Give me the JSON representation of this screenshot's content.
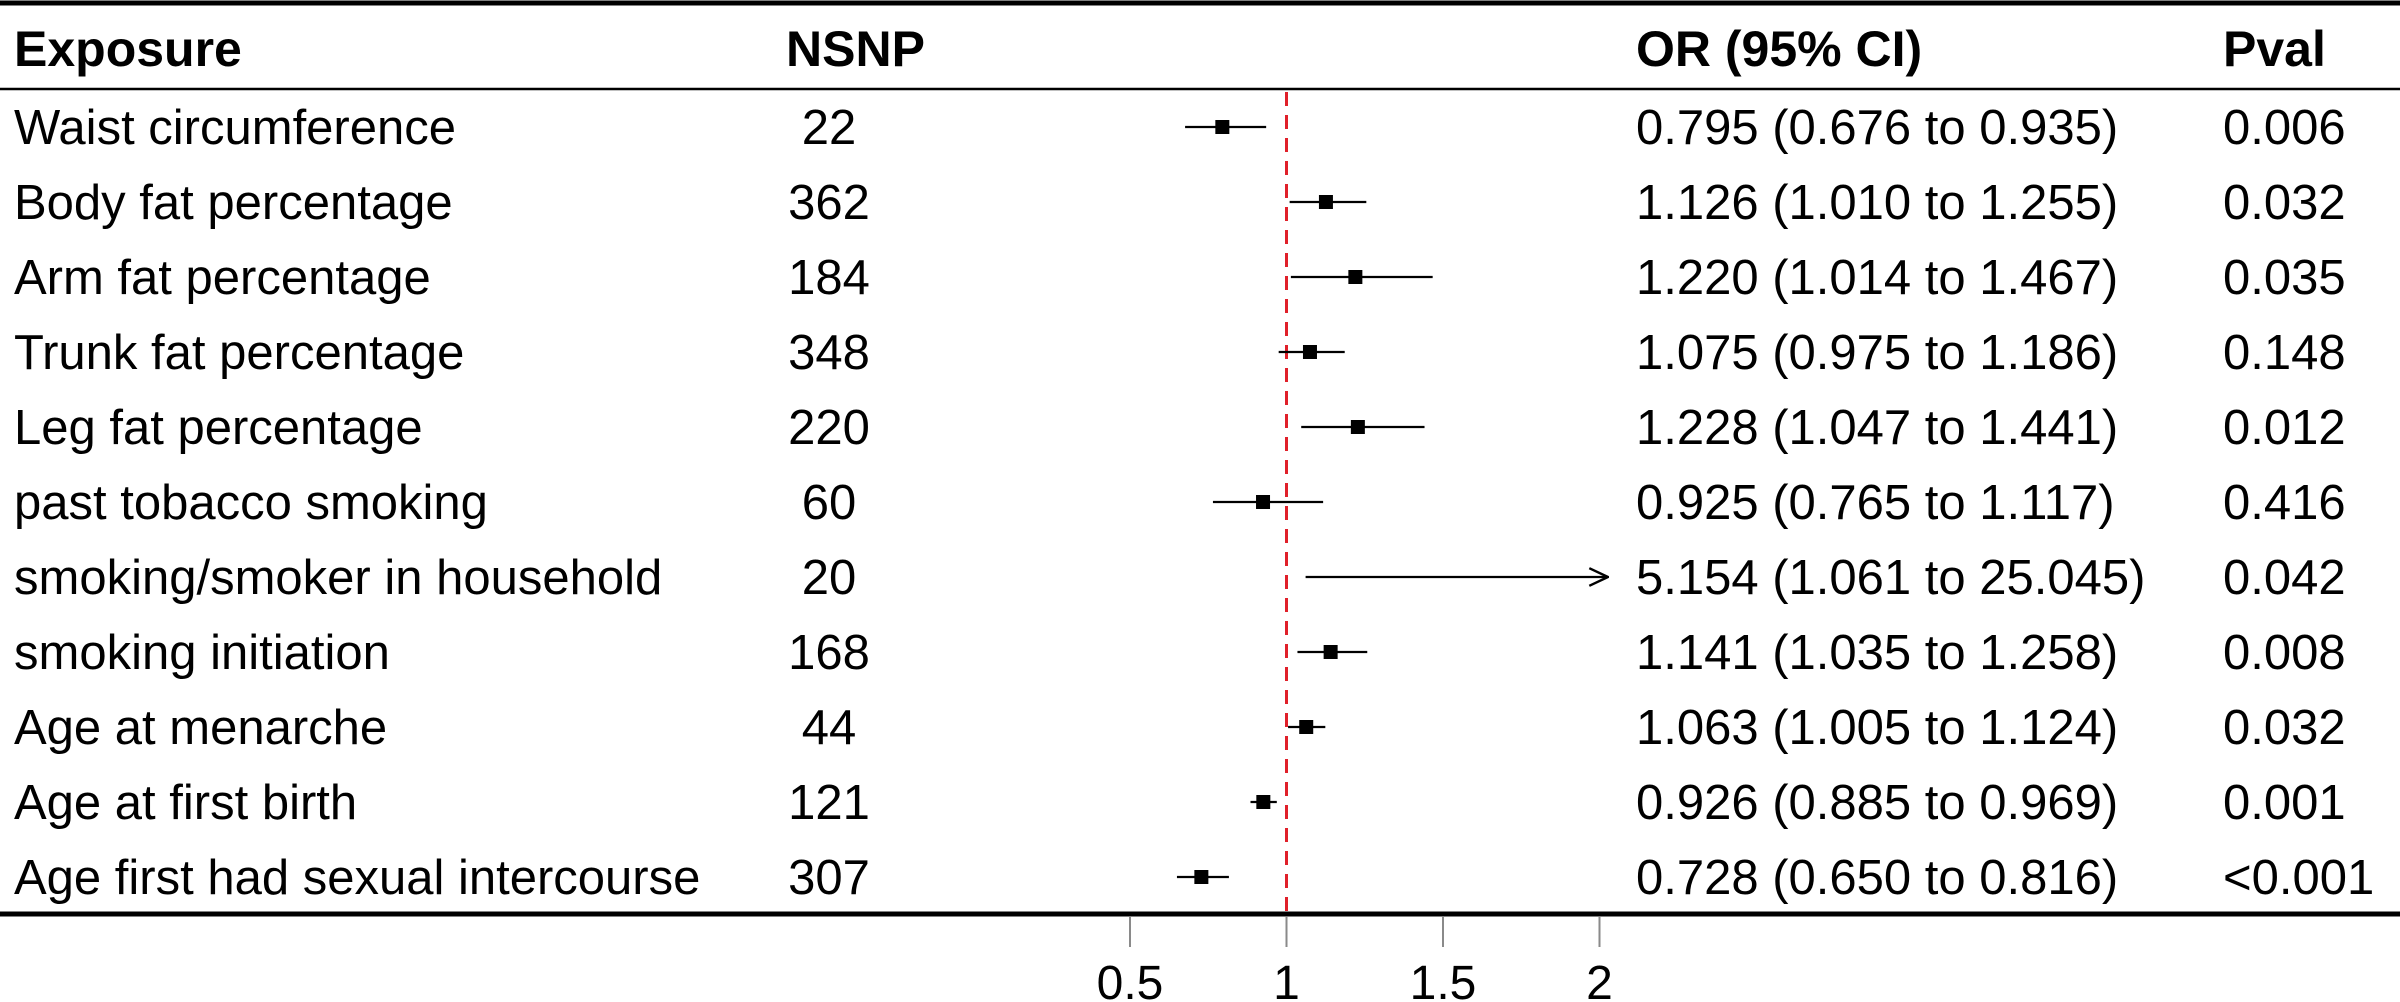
{
  "chart_data": {
    "type": "forest",
    "headers": {
      "exposure": "Exposure",
      "nsnp": "NSNP",
      "or": "OR (95% CI)",
      "pval": "Pval"
    },
    "reference_line": 1,
    "xlim": [
      0.5,
      2.0
    ],
    "xticks": [
      "0.5",
      "1",
      "1.5",
      "2"
    ],
    "rows": [
      {
        "exposure": "Waist circumference",
        "nsnp": "22",
        "or": 0.795,
        "lo": 0.676,
        "hi": 0.935,
        "or_text": "0.795 (0.676 to 0.935)",
        "pval": "0.006"
      },
      {
        "exposure": "Body fat percentage",
        "nsnp": "362",
        "or": 1.126,
        "lo": 1.01,
        "hi": 1.255,
        "or_text": "1.126 (1.010 to 1.255)",
        "pval": "0.032"
      },
      {
        "exposure": "Arm fat percentage",
        "nsnp": "184",
        "or": 1.22,
        "lo": 1.014,
        "hi": 1.467,
        "or_text": "1.220 (1.014 to 1.467)",
        "pval": "0.035"
      },
      {
        "exposure": "Trunk fat percentage",
        "nsnp": "348",
        "or": 1.075,
        "lo": 0.975,
        "hi": 1.186,
        "or_text": "1.075 (0.975 to 1.186)",
        "pval": "0.148"
      },
      {
        "exposure": "Leg fat percentage",
        "nsnp": "220",
        "or": 1.228,
        "lo": 1.047,
        "hi": 1.441,
        "or_text": "1.228 (1.047 to 1.441)",
        "pval": "0.012"
      },
      {
        "exposure": "past tobacco smoking",
        "nsnp": "60",
        "or": 0.925,
        "lo": 0.765,
        "hi": 1.117,
        "or_text": "0.925 (0.765 to 1.117)",
        "pval": "0.416"
      },
      {
        "exposure": "smoking/smoker in household",
        "nsnp": "20",
        "or": 5.154,
        "lo": 1.061,
        "hi": 25.045,
        "or_text": "5.154 (1.061 to 25.045)",
        "pval": "0.042"
      },
      {
        "exposure": "smoking initiation",
        "nsnp": "168",
        "or": 1.141,
        "lo": 1.035,
        "hi": 1.258,
        "or_text": "1.141 (1.035 to 1.258)",
        "pval": "0.008"
      },
      {
        "exposure": "Age at menarche",
        "nsnp": "44",
        "or": 1.063,
        "lo": 1.005,
        "hi": 1.124,
        "or_text": "1.063 (1.005 to 1.124)",
        "pval": "0.032"
      },
      {
        "exposure": "Age at first birth",
        "nsnp": "121",
        "or": 0.926,
        "lo": 0.885,
        "hi": 0.969,
        "or_text": "0.926 (0.885 to 0.969)",
        "pval": "0.001"
      },
      {
        "exposure": "Age first had sexual intercourse",
        "nsnp": "307",
        "or": 0.728,
        "lo": 0.65,
        "hi": 0.816,
        "or_text": "0.728 (0.650 to 0.816)",
        "pval": "<0.001"
      }
    ],
    "colors": {
      "reference_line": "#e0202a",
      "marks": "#000000"
    }
  }
}
